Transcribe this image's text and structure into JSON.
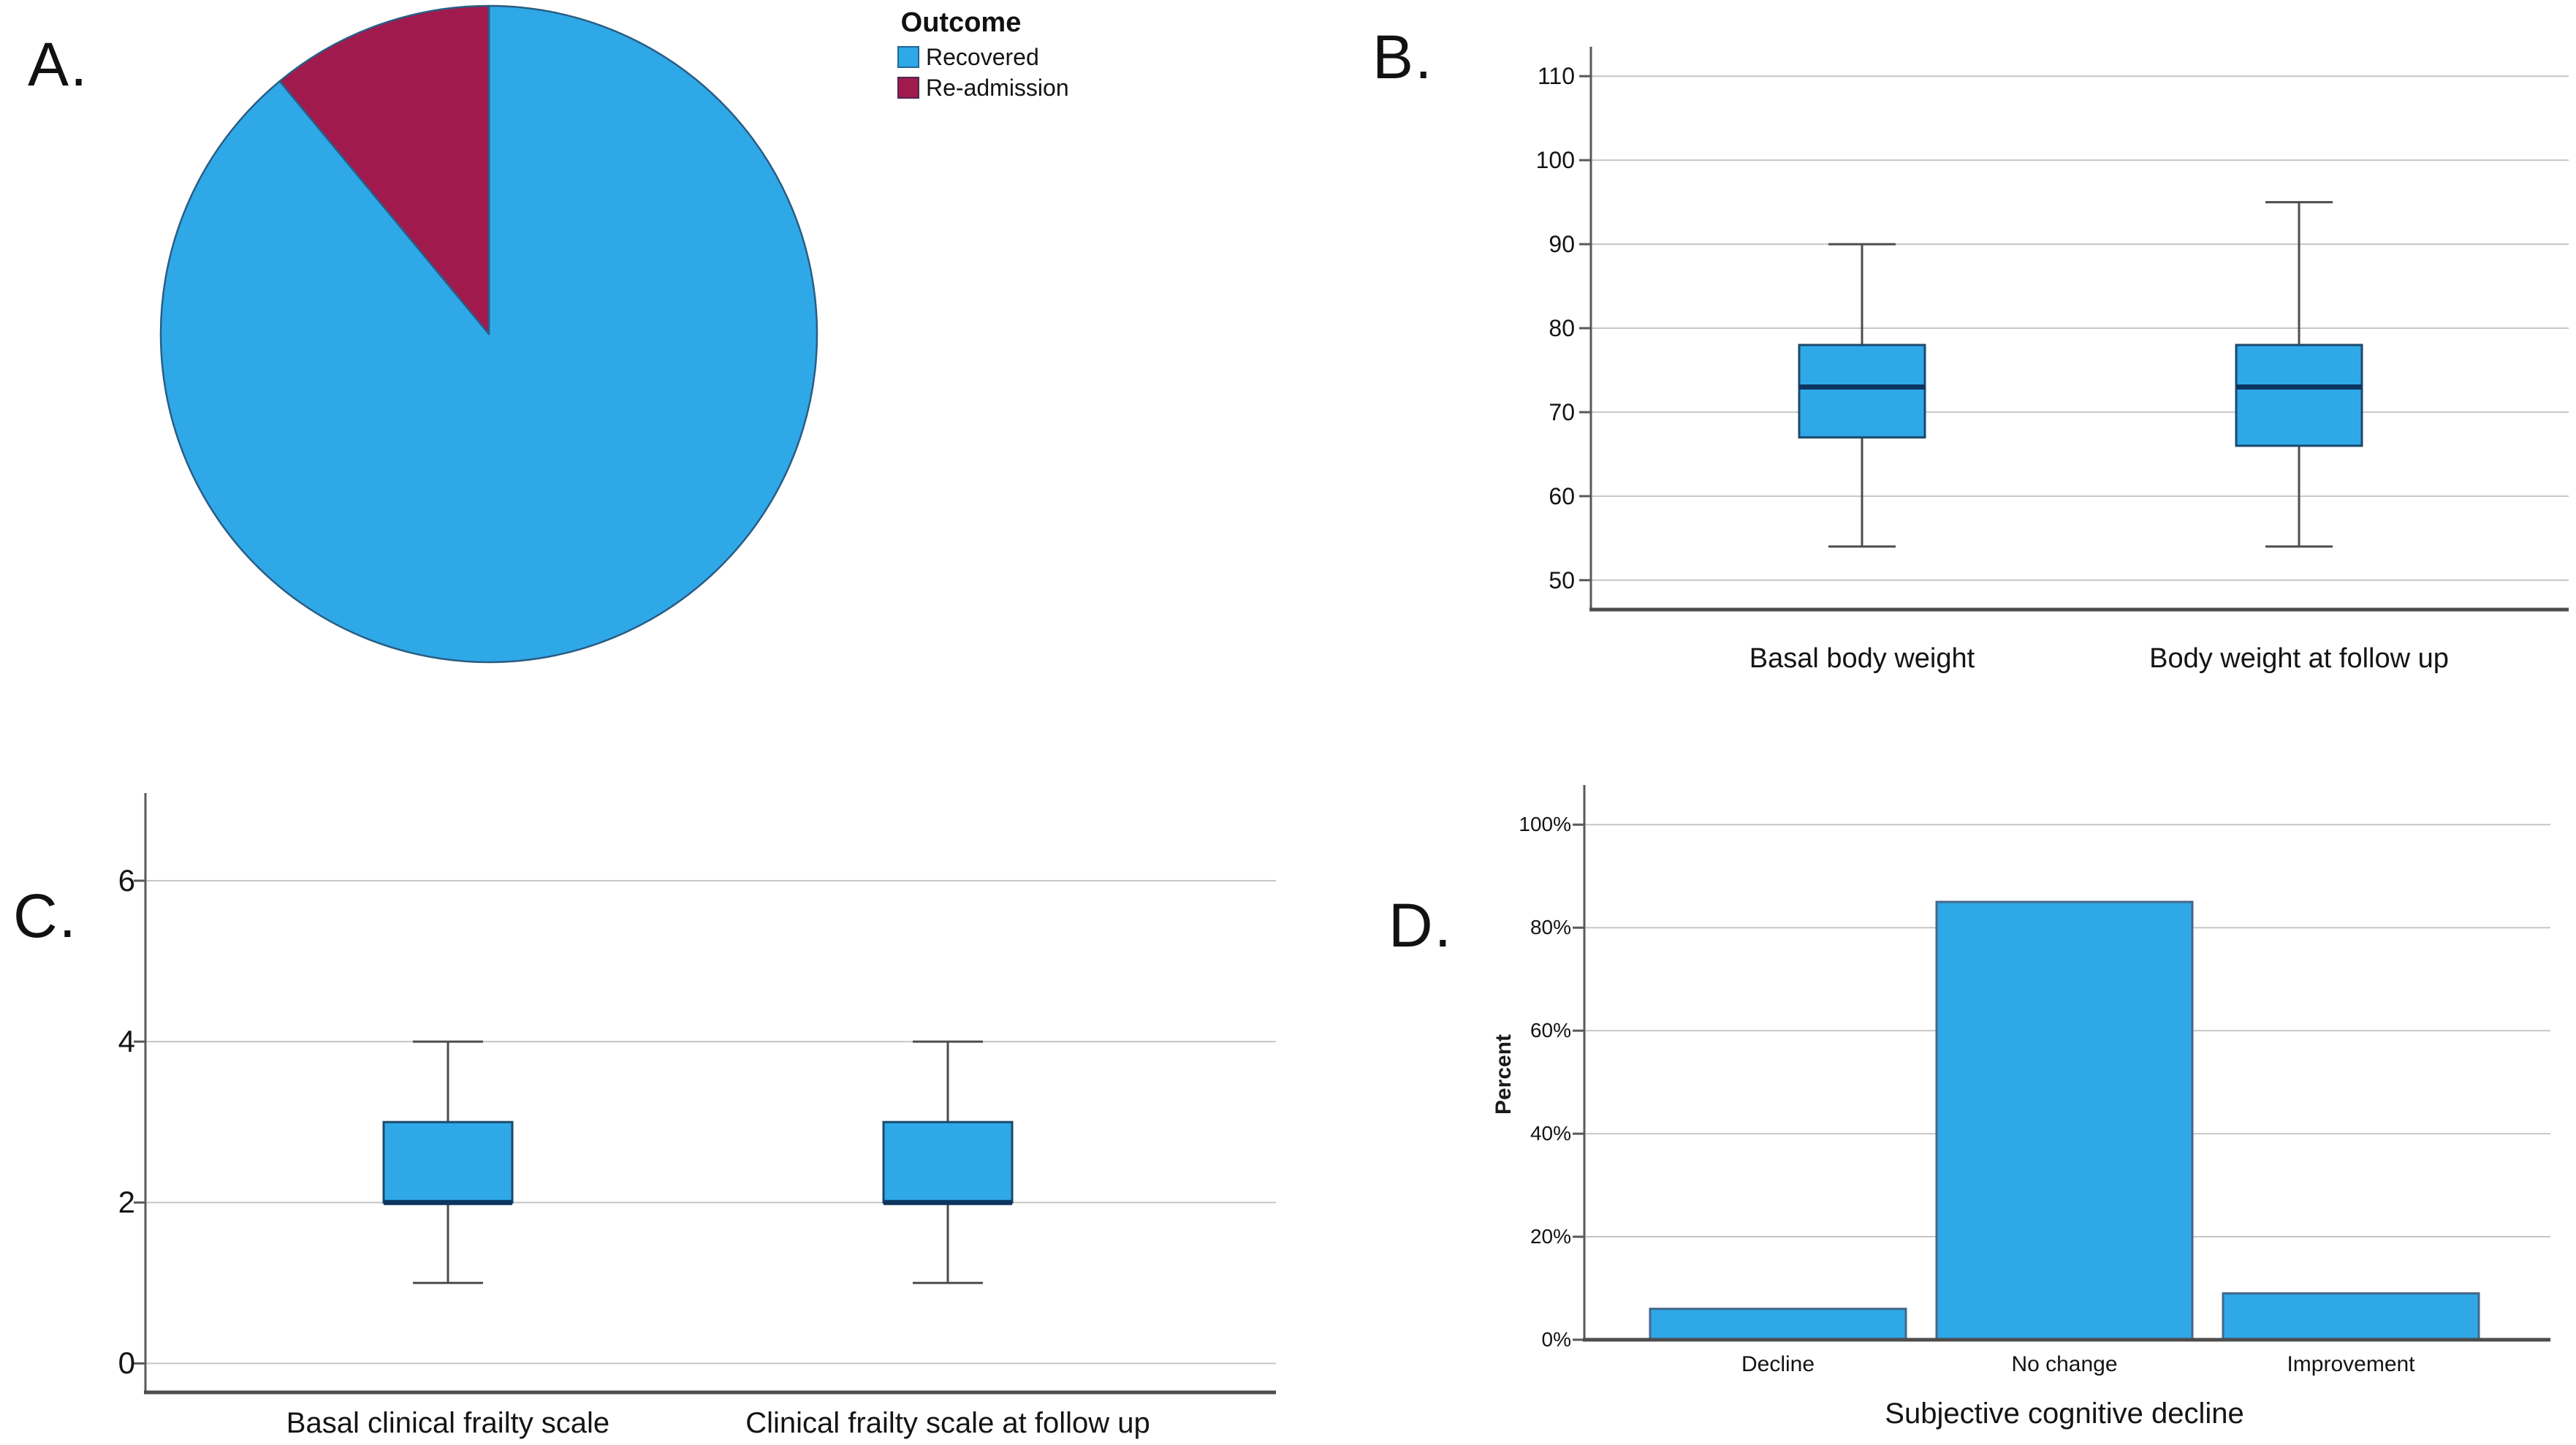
{
  "chart_data": [
    {
      "panel": "A.",
      "type": "pie",
      "legend_title": "Outcome",
      "slices": [
        {
          "label": "Recovered",
          "value": 89,
          "color": "#2FA8E8"
        },
        {
          "label": "Re-admission",
          "value": 11,
          "color": "#A11A4E"
        }
      ],
      "start": "top",
      "direction": "clockwise"
    },
    {
      "panel": "B.",
      "type": "boxplot",
      "categories": [
        "Basal body weight",
        "Body weight at follow up"
      ],
      "series": [
        {
          "name": "Basal body weight",
          "min": 54,
          "q1": 67,
          "median": 73,
          "q3": 78,
          "max": 90
        },
        {
          "name": "Body weight at follow up",
          "min": 54,
          "q1": 66,
          "median": 73,
          "q3": 78,
          "max": 95
        }
      ],
      "yticks": [
        110,
        100,
        90,
        80,
        70,
        60,
        50
      ],
      "ylim": [
        46.5,
        113.5
      ],
      "grid": true
    },
    {
      "panel": "C.",
      "type": "boxplot",
      "categories": [
        "Basal clinical frailty scale",
        "Clinical frailty scale at follow up"
      ],
      "series": [
        {
          "name": "Basal clinical frailty scale",
          "min": 1,
          "q1": 2,
          "median": 2,
          "q3": 3,
          "max": 4
        },
        {
          "name": "Clinical frailty scale at follow up",
          "min": 1,
          "q1": 2,
          "median": 2,
          "q3": 3,
          "max": 4
        }
      ],
      "yticks": [
        6,
        4,
        2,
        0
      ],
      "ylim": [
        -0.36,
        7.09
      ],
      "grid": true
    },
    {
      "panel": "D.",
      "type": "bar",
      "categories": [
        "Decline",
        "No change",
        "Improvement"
      ],
      "values": [
        6,
        85,
        9
      ],
      "yticks": [
        100,
        80,
        60,
        40,
        20,
        0
      ],
      "ytick_labels": [
        "100%",
        "80%",
        "60%",
        "40%",
        "20%",
        "0%"
      ],
      "ylim": [
        0,
        107.7
      ],
      "ylabel": "Percent",
      "xlabel": "Subjective cognitive decline",
      "grid": true
    }
  ],
  "colors": {
    "box_fill": "#2FA8E8",
    "box_border": "#1B4A6B",
    "median": "#0D3560",
    "whisker": "#4D4D4D",
    "grid": "#C6C6C6",
    "axis": "#595959",
    "baseline": "#4D4D4D",
    "bar_fill": "#2FA8E8",
    "bar_border": "#44688A",
    "pie_stroke": "#2A5D84"
  }
}
